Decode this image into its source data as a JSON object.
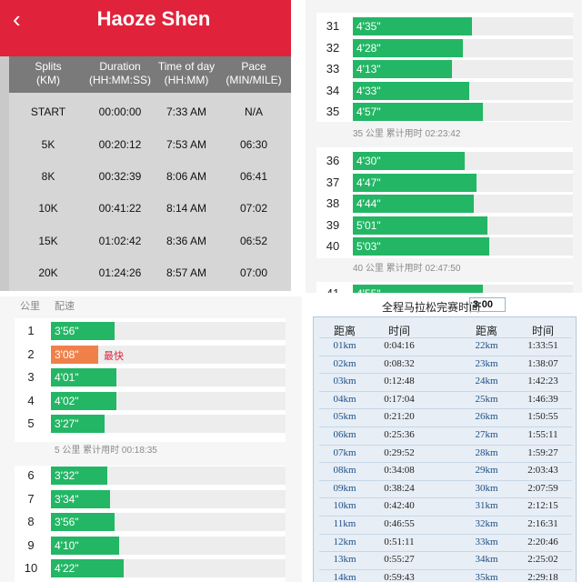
{
  "splits_panel": {
    "title": "Haoze Shen",
    "back_icon": "chevron-left-icon",
    "columns": [
      "Splits\n(KM)",
      "Duration\n(HH:MM:SS)",
      "Time of day\n(HH:MM)",
      "Pace\n(MIN/MILE)"
    ],
    "columns_line1": [
      "Splits",
      "Duration",
      "Time of day",
      "Pace"
    ],
    "columns_line2": [
      "(KM)",
      "(HH:MM:SS)",
      "(HH:MM)",
      "(MIN/MILE)"
    ],
    "rows": [
      {
        "split": "START",
        "duration": "00:00:00",
        "time_of_day": "7:33 AM",
        "pace": "N/A"
      },
      {
        "split": "5K",
        "duration": "00:20:12",
        "time_of_day": "7:53 AM",
        "pace": "06:30"
      },
      {
        "split": "8K",
        "duration": "00:32:39",
        "time_of_day": "8:06 AM",
        "pace": "06:41"
      },
      {
        "split": "10K",
        "duration": "00:41:22",
        "time_of_day": "8:14 AM",
        "pace": "07:02"
      },
      {
        "split": "15K",
        "duration": "01:02:42",
        "time_of_day": "8:36 AM",
        "pace": "06:52"
      },
      {
        "split": "20K",
        "duration": "01:24:26",
        "time_of_day": "8:57 AM",
        "pace": "07:00"
      }
    ],
    "header_color": "#e0233b"
  },
  "late_km_panel": {
    "block1": [
      {
        "km": "31",
        "pace": "4'35\"",
        "fill": 0.54
      },
      {
        "km": "32",
        "pace": "4'28\"",
        "fill": 0.5
      },
      {
        "km": "33",
        "pace": "4'13\"",
        "fill": 0.45
      },
      {
        "km": "34",
        "pace": "4'33\"",
        "fill": 0.53
      },
      {
        "km": "35",
        "pace": "4'57\"",
        "fill": 0.59
      }
    ],
    "note1": "35 公里  累计用时 02:23:42",
    "block2": [
      {
        "km": "36",
        "pace": "4'30\"",
        "fill": 0.51
      },
      {
        "km": "37",
        "pace": "4'47\"",
        "fill": 0.56
      },
      {
        "km": "38",
        "pace": "4'44\"",
        "fill": 0.55
      },
      {
        "km": "39",
        "pace": "5'01\"",
        "fill": 0.61
      },
      {
        "km": "40",
        "pace": "5'03\"",
        "fill": 0.62
      }
    ],
    "note2": "40 公里  累计用时 02:47:50",
    "block3_partial": [
      {
        "km": "41",
        "pace": "4'55\"",
        "fill": 0.59
      }
    ],
    "bar_color": "#23b665"
  },
  "early_km_panel": {
    "col_km": "公里",
    "col_pace": "配速",
    "block1": [
      {
        "km": "1",
        "pace": "3'56\"",
        "fill": 0.27,
        "fast": false
      },
      {
        "km": "2",
        "pace": "3'08\"",
        "fill": 0.2,
        "fast": true
      },
      {
        "km": "3",
        "pace": "4'01\"",
        "fill": 0.28,
        "fast": false
      },
      {
        "km": "4",
        "pace": "4'02\"",
        "fill": 0.28,
        "fast": false
      },
      {
        "km": "5",
        "pace": "3'27\"",
        "fill": 0.23,
        "fast": false
      }
    ],
    "fastest_label": "最快",
    "note1": "5 公里  累计用时 00:18:35",
    "block2": [
      {
        "km": "6",
        "pace": "3'32\"",
        "fill": 0.24
      },
      {
        "km": "7",
        "pace": "3'34\"",
        "fill": 0.25
      },
      {
        "km": "8",
        "pace": "3'56\"",
        "fill": 0.27
      },
      {
        "km": "9",
        "pace": "4'10\"",
        "fill": 0.29
      },
      {
        "km": "10",
        "pace": "4'22\"",
        "fill": 0.31
      }
    ],
    "fast_color": "#f0804a"
  },
  "marathon_table": {
    "title": "全程马拉松完赛时间",
    "target_time": "3:00",
    "headers": [
      "距离",
      "时间",
      "距离",
      "时间"
    ],
    "left_rows": [
      {
        "dist": "01km",
        "time": "0:04:16"
      },
      {
        "dist": "02km",
        "time": "0:08:32"
      },
      {
        "dist": "03km",
        "time": "0:12:48"
      },
      {
        "dist": "04km",
        "time": "0:17:04"
      },
      {
        "dist": "05km",
        "time": "0:21:20"
      },
      {
        "dist": "06km",
        "time": "0:25:36"
      },
      {
        "dist": "07km",
        "time": "0:29:52"
      },
      {
        "dist": "08km",
        "time": "0:34:08"
      },
      {
        "dist": "09km",
        "time": "0:38:24"
      },
      {
        "dist": "10km",
        "time": "0:42:40"
      },
      {
        "dist": "11km",
        "time": "0:46:55"
      },
      {
        "dist": "12km",
        "time": "0:51:11"
      },
      {
        "dist": "13km",
        "time": "0:55:27"
      },
      {
        "dist": "14km",
        "time": "0:59:43"
      }
    ],
    "right_rows": [
      {
        "dist": "22km",
        "time": "1:33:51"
      },
      {
        "dist": "23km",
        "time": "1:38:07"
      },
      {
        "dist": "24km",
        "time": "1:42:23"
      },
      {
        "dist": "25km",
        "time": "1:46:39"
      },
      {
        "dist": "26km",
        "time": "1:50:55"
      },
      {
        "dist": "27km",
        "time": "1:55:11"
      },
      {
        "dist": "28km",
        "time": "1:59:27"
      },
      {
        "dist": "29km",
        "time": "2:03:43"
      },
      {
        "dist": "30km",
        "time": "2:07:59"
      },
      {
        "dist": "31km",
        "time": "2:12:15"
      },
      {
        "dist": "32km",
        "time": "2:16:31"
      },
      {
        "dist": "33km",
        "time": "2:20:46"
      },
      {
        "dist": "34km",
        "time": "2:25:02"
      },
      {
        "dist": "35km",
        "time": "2:29:18"
      }
    ]
  }
}
